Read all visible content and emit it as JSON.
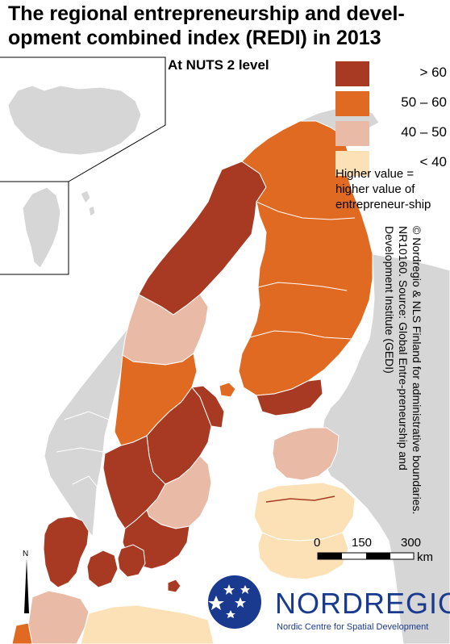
{
  "title": "The regional entrepreneurship and devel-opment combined index (REDI) in 2013",
  "subtitle": "At NUTS 2 level",
  "legend": {
    "items": [
      {
        "label": "> 60",
        "color": "#a83a24"
      },
      {
        "label": "50 – 60",
        "color": "#e06a22"
      },
      {
        "label": "40 – 50",
        "color": "#e9bba7"
      },
      {
        "label": "< 40",
        "color": "#fbe1b5"
      }
    ],
    "note": "Higher value = higher value of entrepreneur-ship"
  },
  "colors": {
    "non_data_land": "#d6d6d6",
    "water": "#ffffff",
    "boundary": "#ffffff"
  },
  "credit": "© Nordregio & NLS Finland for administrative boundaries. NR10160. Source: Global Entre-preneurship and Development Institute (GEDI)",
  "scale": {
    "tick_labels": [
      "0",
      "150",
      "300"
    ],
    "unit": "km"
  },
  "north_arrow": {
    "label": "N"
  },
  "logo": {
    "name": "NORDREGIO",
    "tagline": "Nordic Centre for Spatial Development"
  },
  "regions": [
    {
      "id": "upper-norrland",
      "category": "> 60"
    },
    {
      "id": "mid-norrland",
      "category": "40 – 50"
    },
    {
      "id": "north-mid-sweden",
      "category": "50 – 60"
    },
    {
      "id": "stockholm",
      "category": "> 60"
    },
    {
      "id": "east-mid-sweden",
      "category": "> 60"
    },
    {
      "id": "west-sweden",
      "category": "> 60"
    },
    {
      "id": "smaland-islands",
      "category": "40 – 50"
    },
    {
      "id": "south-sweden",
      "category": "> 60"
    },
    {
      "id": "finland-north-east",
      "category": "50 – 60"
    },
    {
      "id": "helsinki-uusimaa",
      "category": "> 60"
    },
    {
      "id": "aland",
      "category": "50 – 60"
    },
    {
      "id": "estonia",
      "category": "40 – 50"
    },
    {
      "id": "latvia",
      "category": "< 40"
    },
    {
      "id": "lithuania",
      "category": "< 40"
    },
    {
      "id": "denmark",
      "category": "> 60"
    },
    {
      "id": "germany-north",
      "category": "40 – 50"
    },
    {
      "id": "poland-north",
      "category": "< 40"
    }
  ]
}
